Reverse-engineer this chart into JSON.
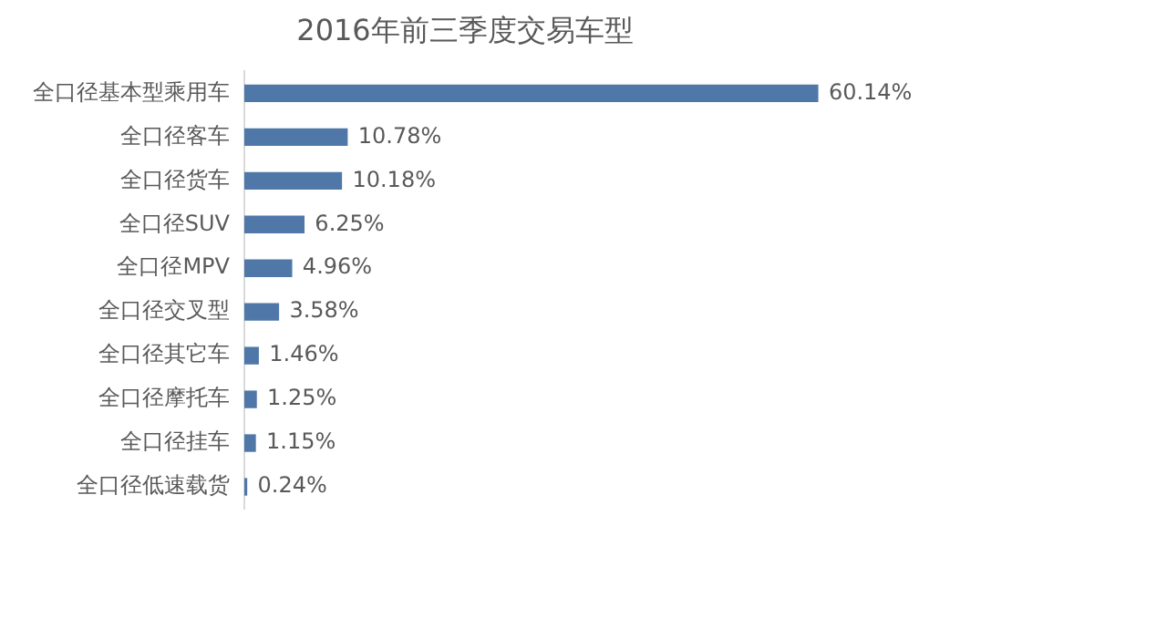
{
  "chart_data": {
    "type": "bar",
    "orientation": "horizontal",
    "title": "2016年前三季度交易车型",
    "categories": [
      "全口径基本型乘用车",
      "全口径客车",
      "全口径货车",
      "全口径SUV",
      "全口径MPV",
      "全口径交叉型",
      "全口径其它车",
      "全口径摩托车",
      "全口径挂车",
      "全口径低速载货"
    ],
    "values": [
      60.14,
      10.78,
      10.18,
      6.25,
      4.96,
      3.58,
      1.46,
      1.25,
      1.15,
      0.24
    ],
    "value_labels": [
      "60.14%",
      "10.78%",
      "10.18%",
      "6.25%",
      "4.96%",
      "3.58%",
      "1.46%",
      "1.25%",
      "1.15%",
      "0.24%"
    ],
    "color": "#4f78a8",
    "grid": false,
    "legend": false
  }
}
